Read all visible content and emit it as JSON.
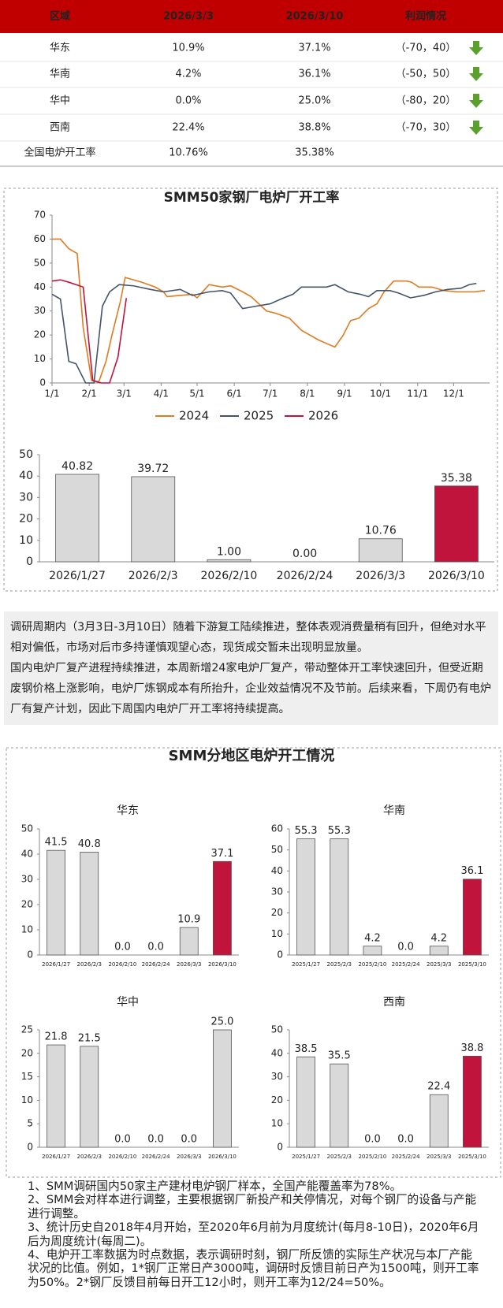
{
  "table": {
    "header": [
      "区域",
      "2026/3/3",
      "2026/3/10",
      "利润情况"
    ],
    "rows": [
      [
        "华东",
        "10.9%",
        "37.1%",
        "（-70，40）"
      ],
      [
        "华南",
        "4.2%",
        "36.1%",
        "（-50，50）"
      ],
      [
        "华中",
        "0.0%",
        "25.0%",
        "（-80，20）"
      ],
      [
        "西南",
        "22.4%",
        "38.8%",
        "（-70，30）"
      ],
      [
        "全国电炉开工率",
        "10.76%",
        "35.38%"
      ]
    ]
  },
  "chart_data": [
    {
      "type": "line",
      "title": "SMM50家钢厂电炉厂开工率",
      "xlim": [
        0,
        365
      ],
      "ylim": [
        0,
        70
      ],
      "yticks": [
        0,
        10,
        20,
        30,
        40,
        50,
        60,
        70
      ],
      "xticks": [
        {
          "value": 0,
          "label": "1/1"
        },
        {
          "value": 31,
          "label": "2/1"
        },
        {
          "value": 60,
          "label": "3/1"
        },
        {
          "value": 91,
          "label": "4/1"
        },
        {
          "value": 121,
          "label": "5/1"
        },
        {
          "value": 152,
          "label": "6/1"
        },
        {
          "value": 182,
          "label": "7/1"
        },
        {
          "value": 213,
          "label": "8/1"
        },
        {
          "value": 244,
          "label": "9/1"
        },
        {
          "value": 274,
          "label": "10/1"
        },
        {
          "value": 305,
          "label": "11/1"
        },
        {
          "value": 335,
          "label": "12/1"
        }
      ],
      "legend": "bottom",
      "series": [
        {
          "name": "2024",
          "color": "#e07b20",
          "x": [
            0,
            7,
            14,
            21,
            26,
            33,
            39,
            45,
            50,
            57,
            61,
            75,
            86,
            93,
            96,
            107,
            117,
            121,
            131,
            142,
            149,
            159,
            166,
            179,
            187,
            198,
            208,
            222,
            231,
            236,
            243,
            249,
            256,
            264,
            271,
            277,
            285,
            296,
            300,
            306,
            317,
            327,
            338,
            352,
            361
          ],
          "values": [
            60,
            60,
            56,
            54,
            23,
            1,
            0.5,
            9,
            20,
            34,
            44,
            42,
            40,
            38,
            36,
            36.5,
            37,
            35.5,
            41,
            40,
            40.5,
            38,
            36,
            30,
            29,
            27,
            22,
            18,
            16,
            15,
            20,
            26,
            27,
            31,
            33,
            38,
            42.5,
            42.5,
            42,
            40,
            40,
            38.5,
            38,
            38,
            38.5
          ]
        },
        {
          "name": "2025",
          "color": "#44546a",
          "x": [
            0,
            7,
            14,
            20,
            28,
            35,
            42,
            48,
            56,
            68,
            82,
            93,
            107,
            117,
            131,
            142,
            149,
            159,
            170,
            182,
            191,
            201,
            208,
            219,
            229,
            236,
            247,
            257,
            264,
            271,
            282,
            289,
            299,
            310,
            320,
            330,
            341,
            348,
            354
          ],
          "values": [
            37,
            35,
            9,
            8,
            0,
            0,
            32,
            38,
            41,
            40.5,
            39,
            38,
            39,
            36.5,
            38,
            38.5,
            37.5,
            31,
            32,
            33,
            35,
            37,
            40,
            40,
            40,
            41,
            38,
            37,
            36,
            38.5,
            38.5,
            37.5,
            35.5,
            36.5,
            38,
            39,
            39.5,
            41,
            41.5
          ]
        },
        {
          "name": "2026",
          "color": "#c0143c",
          "x": [
            0,
            7,
            14,
            26,
            34,
            41,
            48,
            55,
            62
          ],
          "values": [
            42.5,
            43,
            42,
            40,
            1,
            0,
            0,
            10.8,
            35.4
          ]
        }
      ]
    },
    {
      "type": "bar",
      "categories": [
        "2026/1/27",
        "2026/2/3",
        "2026/2/10",
        "2026/2/24",
        "2026/3/3",
        "2026/3/10"
      ],
      "values": [
        40.82,
        39.72,
        1,
        0,
        10.76,
        35.38
      ],
      "value_labels": [
        "40.82",
        "39.72",
        "1.00",
        "0.00",
        "10.76",
        "35.38"
      ],
      "colors": [
        "#d9d9d9",
        "#d9d9d9",
        "#d9d9d9",
        "#d9d9d9",
        "#d9d9d9",
        "#c0143c"
      ],
      "ylim": [
        0,
        50
      ],
      "yticks": [
        0,
        10,
        20,
        30,
        40,
        50
      ]
    },
    {
      "type": "bar",
      "title": "华东",
      "categories": [
        "2026/1/27",
        "2026/2/3",
        "2026/2/10",
        "2026/2/24",
        "2026/3/3",
        "2026/3/10"
      ],
      "values": [
        41.5,
        40.8,
        0,
        0,
        10.9,
        37.1
      ],
      "value_labels": [
        "41.5",
        "40.8",
        "0.0",
        "0.0",
        "10.9",
        "37.1"
      ],
      "colors": [
        "#d9d9d9",
        "#d9d9d9",
        "#d9d9d9",
        "#d9d9d9",
        "#d9d9d9",
        "#c0143c"
      ],
      "ylim": [
        0,
        50
      ],
      "yticks": [
        0,
        10,
        20,
        30,
        40,
        50
      ]
    },
    {
      "type": "bar",
      "title": "华南",
      "categories": [
        "2025/1/27",
        "2025/2/3",
        "2025/2/10",
        "2025/2/24",
        "2025/3/3",
        "2025/3/10"
      ],
      "values": [
        55.3,
        55.3,
        4.2,
        0,
        4.2,
        36.1
      ],
      "value_labels": [
        "55.3",
        "55.3",
        "4.2",
        "0.0",
        "4.2",
        "36.1"
      ],
      "colors": [
        "#d9d9d9",
        "#d9d9d9",
        "#d9d9d9",
        "#d9d9d9",
        "#d9d9d9",
        "#c0143c"
      ],
      "ylim": [
        0,
        60
      ],
      "yticks": [
        0,
        10,
        20,
        30,
        40,
        50,
        60
      ]
    },
    {
      "type": "bar",
      "title": "华中",
      "categories": [
        "2026/1/27",
        "2026/2/3",
        "2026/2/10",
        "2026/2/24",
        "2026/3/3",
        "2026/3/10"
      ],
      "values": [
        21.8,
        21.5,
        0,
        0,
        0,
        25
      ],
      "value_labels": [
        "21.8",
        "21.5",
        "0.0",
        "0.0",
        "0.0",
        "25.0"
      ],
      "colors": [
        "#d9d9d9",
        "#d9d9d9",
        "#d9d9d9",
        "#d9d9d9",
        "#d9d9d9",
        "#d9d9d9"
      ],
      "ylim": [
        0,
        25
      ],
      "yticks": [
        0,
        5,
        10,
        15,
        20,
        25
      ]
    },
    {
      "type": "bar",
      "title": "西南",
      "categories": [
        "2025/1/27",
        "2025/2/3",
        "2025/2/10",
        "2025/2/24",
        "2025/3/3",
        "2025/3/10"
      ],
      "values": [
        38.5,
        35.5,
        0,
        0,
        22.4,
        38.8
      ],
      "value_labels": [
        "38.5",
        "35.5",
        "0.0",
        "0.0",
        "22.4",
        "38.8"
      ],
      "colors": [
        "#d9d9d9",
        "#d9d9d9",
        "#d9d9d9",
        "#d9d9d9",
        "#d9d9d9",
        "#c0143c"
      ],
      "ylim": [
        0,
        50
      ],
      "yticks": [
        0,
        10,
        20,
        30,
        40,
        50
      ]
    }
  ],
  "commentary": [
    "调研周期内（3月3日-3月10日）随着下游复工陆续推进，整体表观消费量稍有回升，但绝对水平相对偏低，市场对后市多持谨慎观望心态，现货成交暂未出现明显放量。",
    "国内电炉厂复产进程持续推进，本周新增24家电炉厂复产，带动整体开工率快速回升，但受近期废钢价格上涨影响，电炉厂炼钢成本有所抬升，企业效益情况不及节前。后续来看，下周仍有电炉厂有复产计划，因此下周国内电炉厂开工率将持续提高。"
  ],
  "region_section_title": "SMM分地区电炉开工情况",
  "notes": [
    "1、SMM调研国内50家主产建材电炉钢厂样本，全国产能覆盖率为78%。",
    "2、SMM会对样本进行调整，主要根据钢厂新投产和关停情况，对每个钢厂的设备与产能进行调整。",
    "3、统计历史自2018年4月开始，至2020年6月前为月度统计(每月8-10日)，2020年6月后为周度统计(每周二)。",
    "4、电炉开工率数据为时点数据，表示调研时刻，钢厂所反馈的实际生产状况与本厂产能状况的比值。例如，1*钢厂正常日产3000吨，调研时反馈目前日产为1500吨，则开工率为50%。2*钢厂反馈目前每日开工12小时，则开工率为12/24=50%。"
  ]
}
